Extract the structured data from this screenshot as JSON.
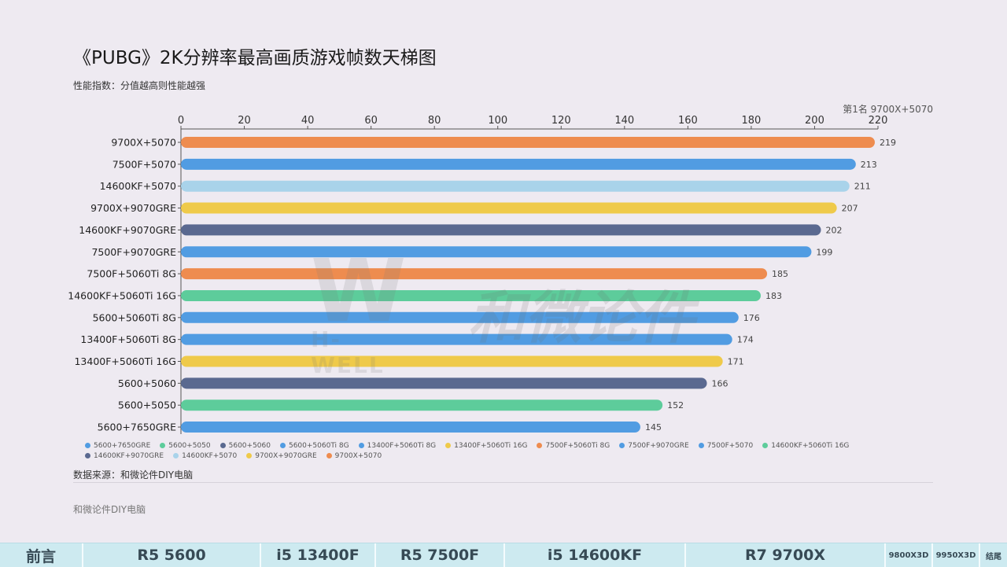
{
  "title": "《PUBG》2K分辨率最高画质游戏帧数天梯图",
  "subtitle": "性能指数：分值越高则性能越强",
  "top_note": "第1名 9700X+5070",
  "source": "数据来源：和微论件DIY电脑",
  "footer_brand": "和微论件DIY电脑",
  "watermark": {
    "logo": "W",
    "brand": "和微论件",
    "sub": "H-WELL"
  },
  "colors": {
    "orange": "#ee8c4f",
    "blue": "#519ce2",
    "lightblue": "#a9d3ea",
    "yellow": "#efca4a",
    "navy": "#5a6990",
    "green": "#5dcc9b"
  },
  "chart_data": {
    "type": "bar",
    "orientation": "horizontal",
    "title": "《PUBG》2K分辨率最高画质游戏帧数天梯图",
    "xlim": [
      0,
      220
    ],
    "xticks": [
      0,
      20,
      40,
      60,
      80,
      100,
      120,
      140,
      160,
      180,
      200,
      220
    ],
    "x_axis_position": "top",
    "grid": false,
    "legend_position": "bottom",
    "categories": [
      "9700X+5070",
      "7500F+5070",
      "14600KF+5070",
      "9700X+9070GRE",
      "14600KF+9070GRE",
      "7500F+9070GRE",
      "7500F+5060Ti 8G",
      "14600KF+5060Ti 16G",
      "5600+5060Ti 8G",
      "13400F+5060Ti 8G",
      "13400F+5060Ti 16G",
      "5600+5060",
      "5600+5050",
      "5600+7650GRE"
    ],
    "values": [
      219,
      213,
      211,
      207,
      202,
      199,
      185,
      183,
      176,
      174,
      171,
      166,
      152,
      145
    ],
    "bar_colors": [
      "#ee8c4f",
      "#519ce2",
      "#a9d3ea",
      "#efca4a",
      "#5a6990",
      "#519ce2",
      "#ee8c4f",
      "#5dcc9b",
      "#519ce2",
      "#519ce2",
      "#efca4a",
      "#5a6990",
      "#5dcc9b",
      "#519ce2"
    ],
    "legend": [
      {
        "label": "5600+7650GRE",
        "color": "#519ce2"
      },
      {
        "label": "5600+5050",
        "color": "#5dcc9b"
      },
      {
        "label": "5600+5060",
        "color": "#5a6990"
      },
      {
        "label": "5600+5060Ti 8G",
        "color": "#519ce2"
      },
      {
        "label": "13400F+5060Ti 8G",
        "color": "#519ce2"
      },
      {
        "label": "13400F+5060Ti 16G",
        "color": "#efca4a"
      },
      {
        "label": "7500F+5060Ti 8G",
        "color": "#ee8c4f"
      },
      {
        "label": "7500F+9070GRE",
        "color": "#519ce2"
      },
      {
        "label": "7500F+5070",
        "color": "#519ce2"
      },
      {
        "label": "14600KF+5060Ti 16G",
        "color": "#5dcc9b"
      },
      {
        "label": "14600KF+9070GRE",
        "color": "#5a6990"
      },
      {
        "label": "14600KF+5070",
        "color": "#a9d3ea"
      },
      {
        "label": "9700X+9070GRE",
        "color": "#efca4a"
      },
      {
        "label": "9700X+5070",
        "color": "#ee8c4f"
      }
    ]
  },
  "nav": [
    {
      "label": "前言"
    },
    {
      "label": "R5 5600"
    },
    {
      "label": "i5 13400F"
    },
    {
      "label": "R5 7500F"
    },
    {
      "label": "i5 14600KF"
    },
    {
      "label": "R7 9700X"
    },
    {
      "label": "9800X3D"
    },
    {
      "label": "9950X3D"
    },
    {
      "label": "结尾"
    }
  ]
}
